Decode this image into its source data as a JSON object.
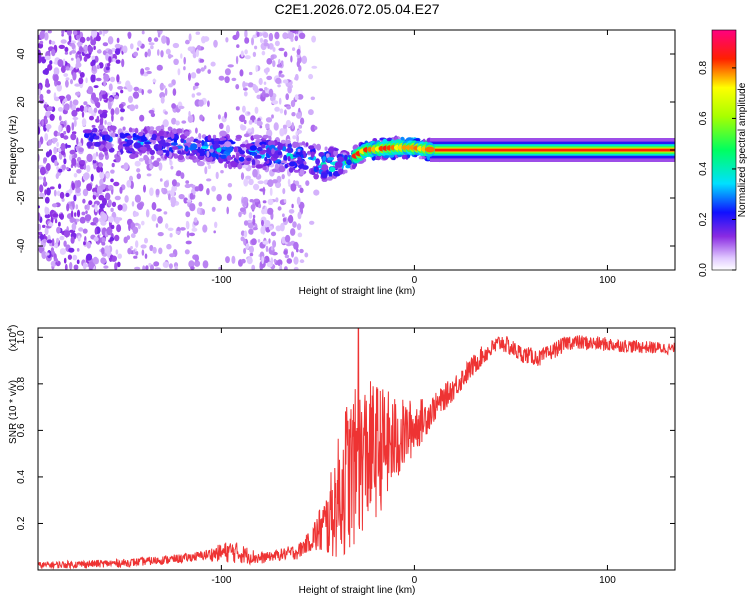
{
  "title": "C2E1.2026.072.05.04.E27",
  "colors": {
    "snr_line": "#ee3333",
    "axis": "#000000"
  },
  "chart_data": [
    {
      "type": "heatmap",
      "title": "C2E1.2026.072.05.04.E27",
      "xlabel": "Height of straight line (km)",
      "ylabel": "Frequency (Hz)",
      "xlim": [
        -195,
        135
      ],
      "ylim": [
        -50,
        50
      ],
      "xticks": [
        -100,
        0,
        100
      ],
      "xtick_labels": [
        "-100",
        "0",
        "100"
      ],
      "yticks": [
        40,
        20,
        0,
        -20,
        -40
      ],
      "ytick_labels": [
        "40",
        "20",
        "0",
        "-20",
        "-40"
      ],
      "colorbar": {
        "label": "Normalized spectral amplitude",
        "range": [
          0,
          0.95
        ],
        "ticks": [
          0.0,
          0.2,
          0.4,
          0.6,
          0.8
        ],
        "tick_labels": [
          "0.0",
          "0.2",
          "0.4",
          "0.6",
          "0.8"
        ]
      },
      "centerline": [
        {
          "x": -165,
          "y": 4
        },
        {
          "x": -140,
          "y": 3
        },
        {
          "x": -120,
          "y": 2
        },
        {
          "x": -100,
          "y": 0
        },
        {
          "x": -80,
          "y": -1
        },
        {
          "x": -60,
          "y": -3
        },
        {
          "x": -45,
          "y": -6
        },
        {
          "x": -35,
          "y": -5
        },
        {
          "x": -25,
          "y": 0
        },
        {
          "x": -10,
          "y": 1
        },
        {
          "x": 0,
          "y": 1
        },
        {
          "x": 10,
          "y": 0
        },
        {
          "x": 135,
          "y": 0
        }
      ],
      "band_amplitude": [
        {
          "x": -170,
          "a": 0.3
        },
        {
          "x": -120,
          "a": 0.35
        },
        {
          "x": -60,
          "a": 0.4
        },
        {
          "x": -30,
          "a": 0.55
        },
        {
          "x": -15,
          "a": 0.85
        },
        {
          "x": 10,
          "a": 0.95
        },
        {
          "x": 135,
          "a": 0.95
        }
      ]
    },
    {
      "type": "line",
      "xlabel": "Height of straight line (km)",
      "ylabel": "SNR (10 * v/v)",
      "y_multiplier": "(x10",
      "y_multiplier_exp": "4",
      "xlim": [
        -195,
        135
      ],
      "ylim": [
        0,
        1.04
      ],
      "xticks": [
        -100,
        0,
        100
      ],
      "xtick_labels": [
        "-100",
        "0",
        "100"
      ],
      "yticks": [
        0.2,
        0.4,
        0.6,
        0.8,
        1.0
      ],
      "ytick_labels": [
        "0.2",
        "0.4",
        "0.6",
        "0.8",
        "1.0"
      ],
      "envelope": [
        {
          "x": -195,
          "y": 0.02
        },
        {
          "x": -150,
          "y": 0.03
        },
        {
          "x": -120,
          "y": 0.05
        },
        {
          "x": -95,
          "y": 0.08
        },
        {
          "x": -80,
          "y": 0.05
        },
        {
          "x": -60,
          "y": 0.08
        },
        {
          "x": -45,
          "y": 0.2
        },
        {
          "x": -35,
          "y": 0.4
        },
        {
          "x": -25,
          "y": 0.5
        },
        {
          "x": -10,
          "y": 0.55
        },
        {
          "x": 5,
          "y": 0.65
        },
        {
          "x": 20,
          "y": 0.78
        },
        {
          "x": 35,
          "y": 0.92
        },
        {
          "x": 45,
          "y": 0.98
        },
        {
          "x": 55,
          "y": 0.93
        },
        {
          "x": 65,
          "y": 0.91
        },
        {
          "x": 80,
          "y": 0.98
        },
        {
          "x": 100,
          "y": 0.97
        },
        {
          "x": 115,
          "y": 0.96
        },
        {
          "x": 135,
          "y": 0.95
        }
      ],
      "noise": [
        {
          "x": -195,
          "n": 0.015
        },
        {
          "x": -110,
          "n": 0.02
        },
        {
          "x": -95,
          "n": 0.05
        },
        {
          "x": -75,
          "n": 0.02
        },
        {
          "x": -55,
          "n": 0.04
        },
        {
          "x": -45,
          "n": 0.15
        },
        {
          "x": -35,
          "n": 0.35
        },
        {
          "x": -20,
          "n": 0.3
        },
        {
          "x": -5,
          "n": 0.15
        },
        {
          "x": 10,
          "n": 0.06
        },
        {
          "x": 40,
          "n": 0.04
        },
        {
          "x": 135,
          "n": 0.025
        }
      ],
      "peak": {
        "x": -29,
        "y": 1.04
      }
    }
  ]
}
